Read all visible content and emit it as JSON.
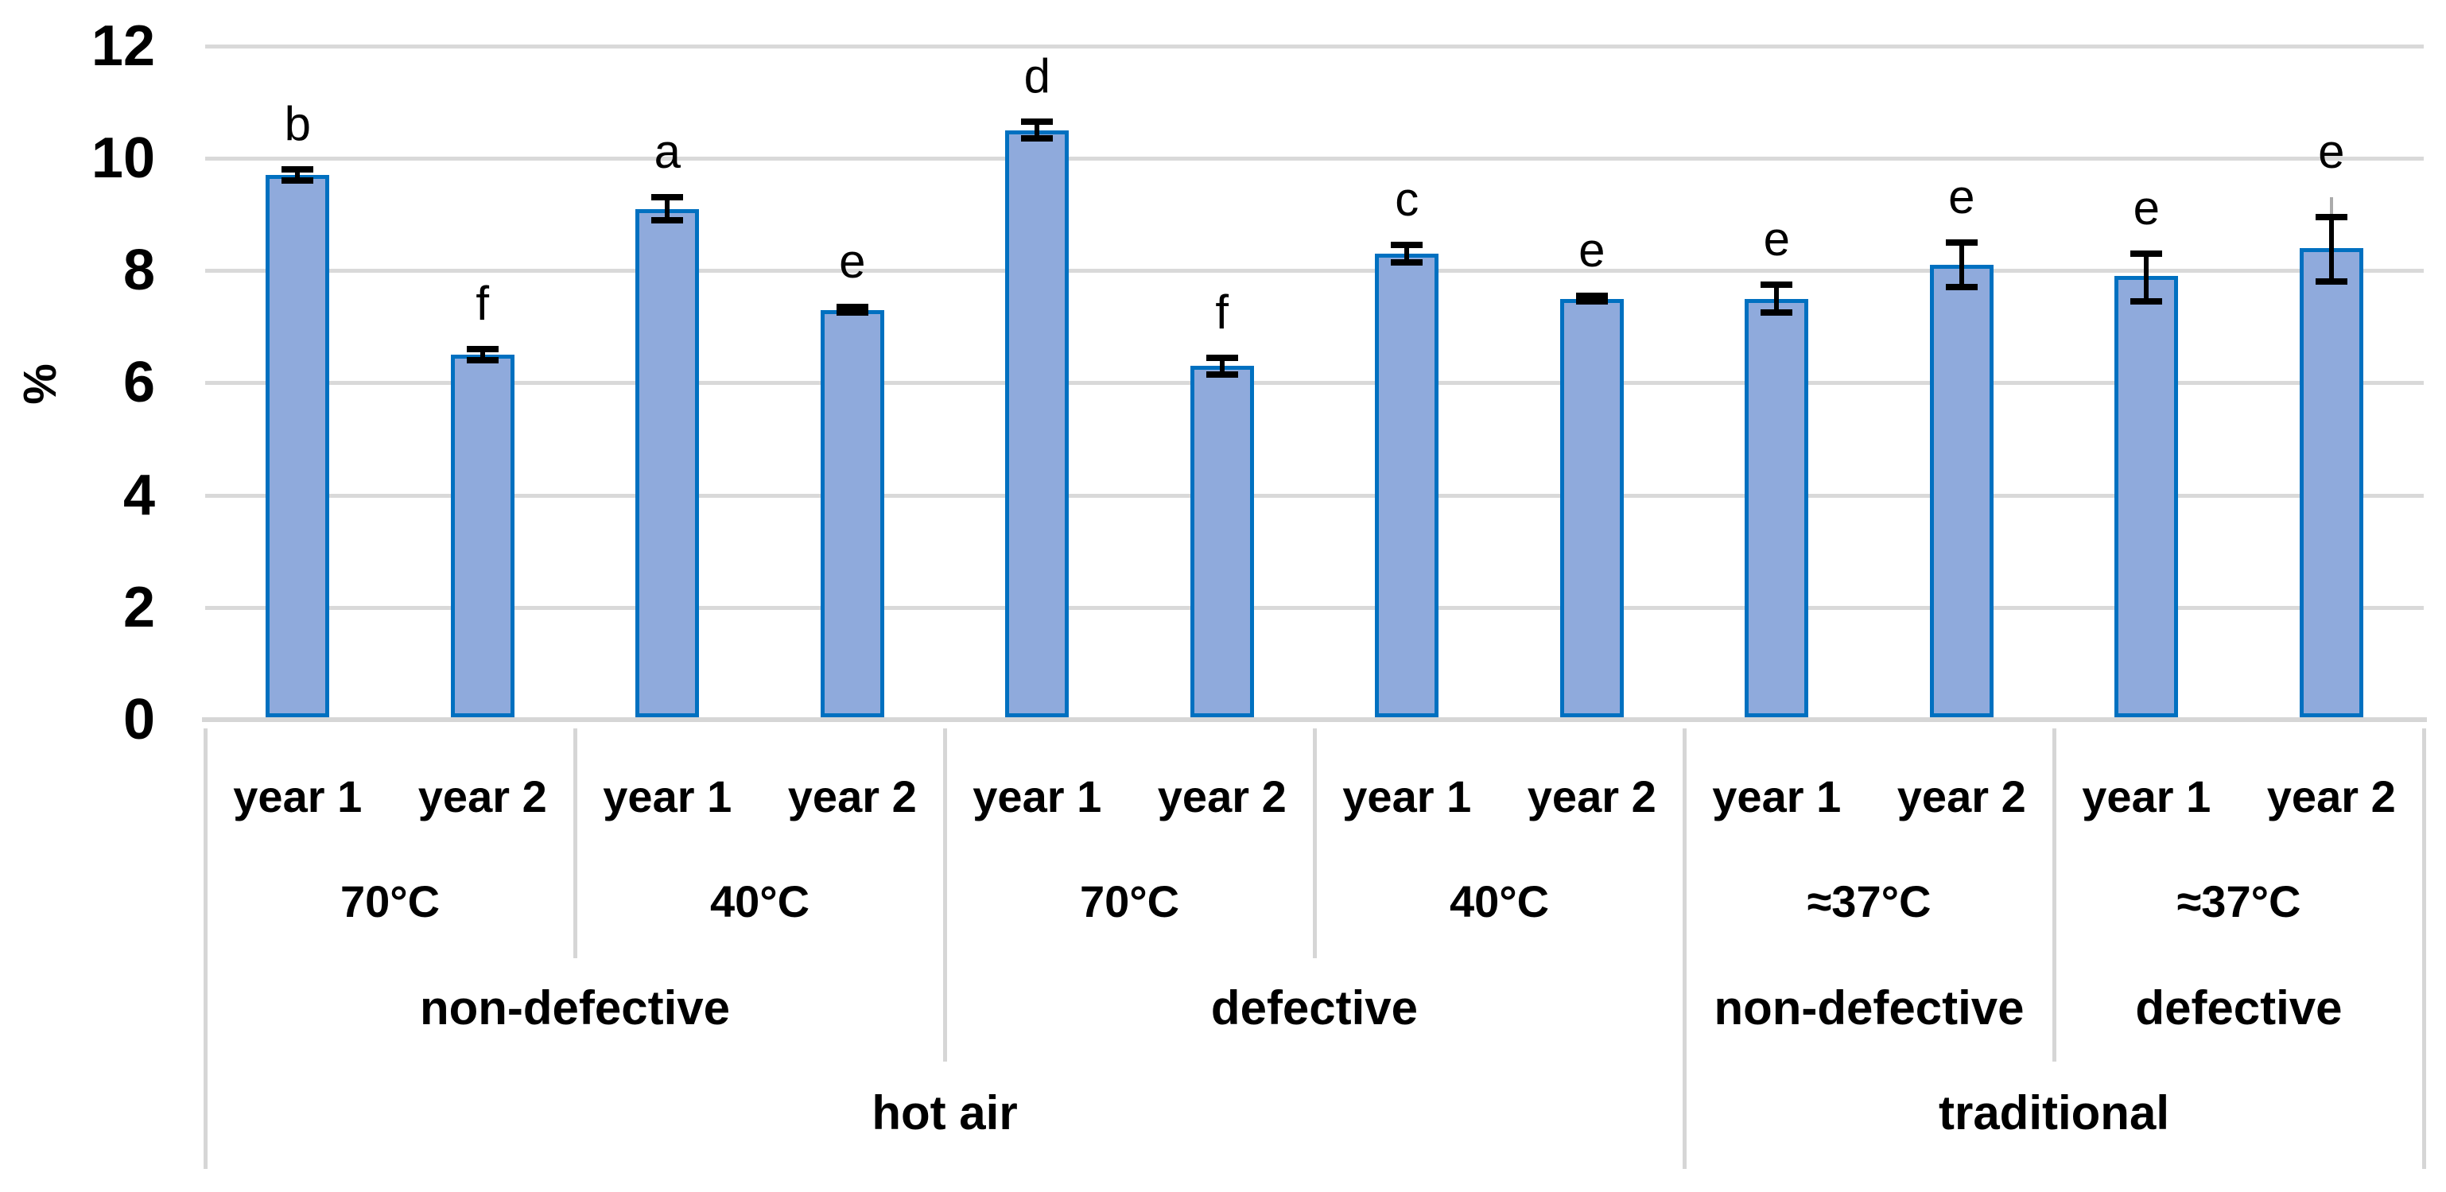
{
  "chart_data": {
    "type": "bar",
    "title": "",
    "xlabel": "",
    "ylabel": "%",
    "ylim": [
      0,
      12
    ],
    "yticks": [
      0,
      2,
      4,
      6,
      8,
      10,
      12
    ],
    "grid": true,
    "legend": "none",
    "colors": {
      "bar_fill": "#8FAADC",
      "bar_border": "#0070C0",
      "error_bar": "#000000",
      "grey_whisker": "#ABABAB",
      "gridline": "#D9D9D9",
      "axis_line": "#D6D6D6",
      "text": "#000000"
    },
    "bars": [
      {
        "method": "hot air",
        "condition": "non-defective",
        "temperature": "70°C",
        "year": "year 1",
        "value": 9.7,
        "err_up": 0.1,
        "err_down": 0.1,
        "letter": "b"
      },
      {
        "method": "hot air",
        "condition": "non-defective",
        "temperature": "70°C",
        "year": "year 2",
        "value": 6.5,
        "err_up": 0.1,
        "err_down": 0.1,
        "letter": "f"
      },
      {
        "method": "hot air",
        "condition": "non-defective",
        "temperature": "40°C",
        "year": "year 1",
        "value": 9.1,
        "err_up": 0.2,
        "err_down": 0.2,
        "letter": "a"
      },
      {
        "method": "hot air",
        "condition": "non-defective",
        "temperature": "40°C",
        "year": "year 2",
        "value": 7.3,
        "err_up": 0.05,
        "err_down": 0.05,
        "letter": "e"
      },
      {
        "method": "hot air",
        "condition": "defective",
        "temperature": "70°C",
        "year": "year 1",
        "value": 10.5,
        "err_up": 0.15,
        "err_down": 0.15,
        "letter": "d"
      },
      {
        "method": "hot air",
        "condition": "defective",
        "temperature": "70°C",
        "year": "year 2",
        "value": 6.3,
        "err_up": 0.15,
        "err_down": 0.15,
        "letter": "f"
      },
      {
        "method": "hot air",
        "condition": "defective",
        "temperature": "40°C",
        "year": "year 1",
        "value": 8.3,
        "err_up": 0.15,
        "err_down": 0.15,
        "letter": "c"
      },
      {
        "method": "hot air",
        "condition": "defective",
        "temperature": "40°C",
        "year": "year 2",
        "value": 7.5,
        "err_up": 0.05,
        "err_down": 0.05,
        "letter": "e"
      },
      {
        "method": "traditional",
        "condition": "non-defective",
        "temperature": "≈37°C",
        "year": "year 1",
        "value": 7.5,
        "err_up": 0.25,
        "err_down": 0.25,
        "letter": "e"
      },
      {
        "method": "traditional",
        "condition": "non-defective",
        "temperature": "≈37°C",
        "year": "year 2",
        "value": 8.1,
        "err_up": 0.4,
        "err_down": 0.4,
        "letter": "e"
      },
      {
        "method": "traditional",
        "condition": "defective",
        "temperature": "≈37°C",
        "year": "year 1",
        "value": 7.9,
        "err_up": 0.4,
        "err_down": 0.45,
        "letter": "e"
      },
      {
        "method": "traditional",
        "condition": "defective",
        "temperature": "≈37°C",
        "year": "year 2",
        "value": 8.4,
        "err_up": 0.55,
        "err_down": 0.6,
        "letter": "e",
        "grey_whisker_top": 9.3
      }
    ],
    "axis_rows": {
      "temperature_groups": [
        {
          "label": "70°C",
          "span": 2
        },
        {
          "label": "40°C",
          "span": 2
        },
        {
          "label": "70°C",
          "span": 2
        },
        {
          "label": "40°C",
          "span": 2
        },
        {
          "label": "≈37°C",
          "span": 2
        },
        {
          "label": "≈37°C",
          "span": 2
        }
      ],
      "condition_groups": [
        {
          "label": "non-defective",
          "span": 4
        },
        {
          "label": "defective",
          "span": 4
        },
        {
          "label": "non-defective",
          "span": 2
        },
        {
          "label": "defective",
          "span": 2
        }
      ],
      "method_groups": [
        {
          "label": "hot air",
          "span": 8
        },
        {
          "label": "traditional",
          "span": 4
        }
      ]
    }
  }
}
